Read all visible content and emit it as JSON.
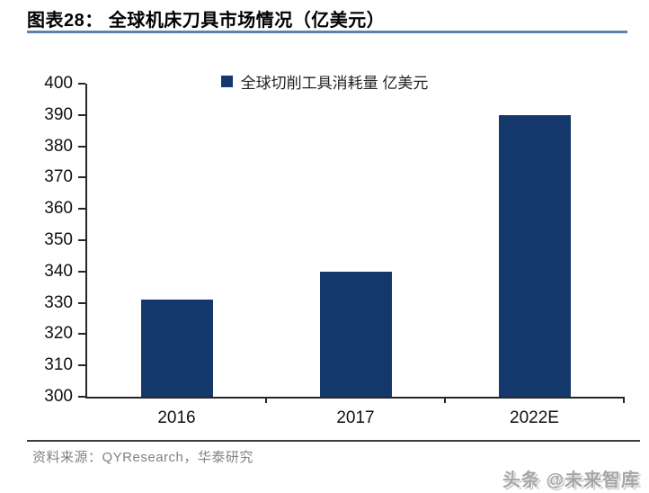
{
  "header": {
    "title": "图表28：  全球机床刀具市场情况（亿美元）"
  },
  "chart_data": {
    "type": "bar",
    "title": "全球机床刀具市场情况（亿美元）",
    "legend": "全球切削工具消耗量 亿美元",
    "legend_position": "top-center",
    "categories": [
      "2016",
      "2017",
      "2022E"
    ],
    "values": [
      331,
      340,
      390
    ],
    "ylim": [
      300,
      400
    ],
    "ytick_step": 10,
    "grid": false,
    "xlabel": "",
    "ylabel": "",
    "bar_color": "#14386b",
    "axis_color": "#262626"
  },
  "footer": {
    "source": "资料来源：QYResearch，华泰研究",
    "watermark": "头条 @未来智库"
  }
}
